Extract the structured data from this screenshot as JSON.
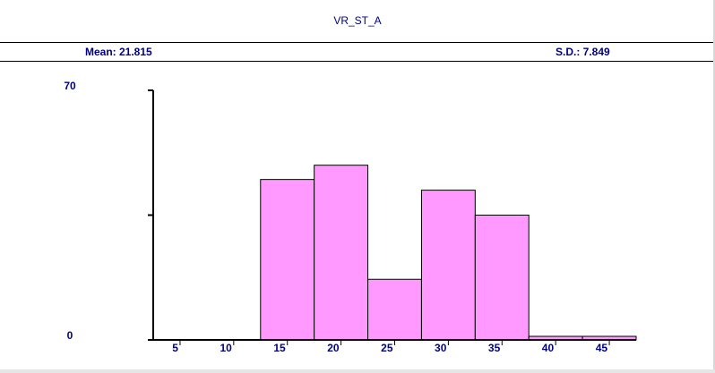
{
  "header": {
    "title": "VR_ST_A",
    "mean_label": "Mean: 21.815",
    "sd_label": "S.D.: 7.849"
  },
  "colors": {
    "bar_fill": "#ff99ff",
    "text": "#000080",
    "axis": "#000000"
  },
  "chart_data": {
    "type": "bar",
    "title": "VR_ST_A",
    "ylim": [
      0,
      70
    ],
    "y_tick_labels": [
      "70",
      "0"
    ],
    "x_tick_labels": [
      "5",
      "10",
      "15",
      "20",
      "25",
      "30",
      "35",
      "40",
      "45"
    ],
    "bins": [
      {
        "start": 12.5,
        "end": 17.5,
        "value": 45
      },
      {
        "start": 17.5,
        "end": 22.5,
        "value": 49
      },
      {
        "start": 22.5,
        "end": 27.5,
        "value": 17
      },
      {
        "start": 27.5,
        "end": 32.5,
        "value": 42
      },
      {
        "start": 32.5,
        "end": 37.5,
        "value": 35
      },
      {
        "start": 37.5,
        "end": 42.5,
        "value": 1
      },
      {
        "start": 42.5,
        "end": 47.5,
        "value": 1
      }
    ]
  }
}
